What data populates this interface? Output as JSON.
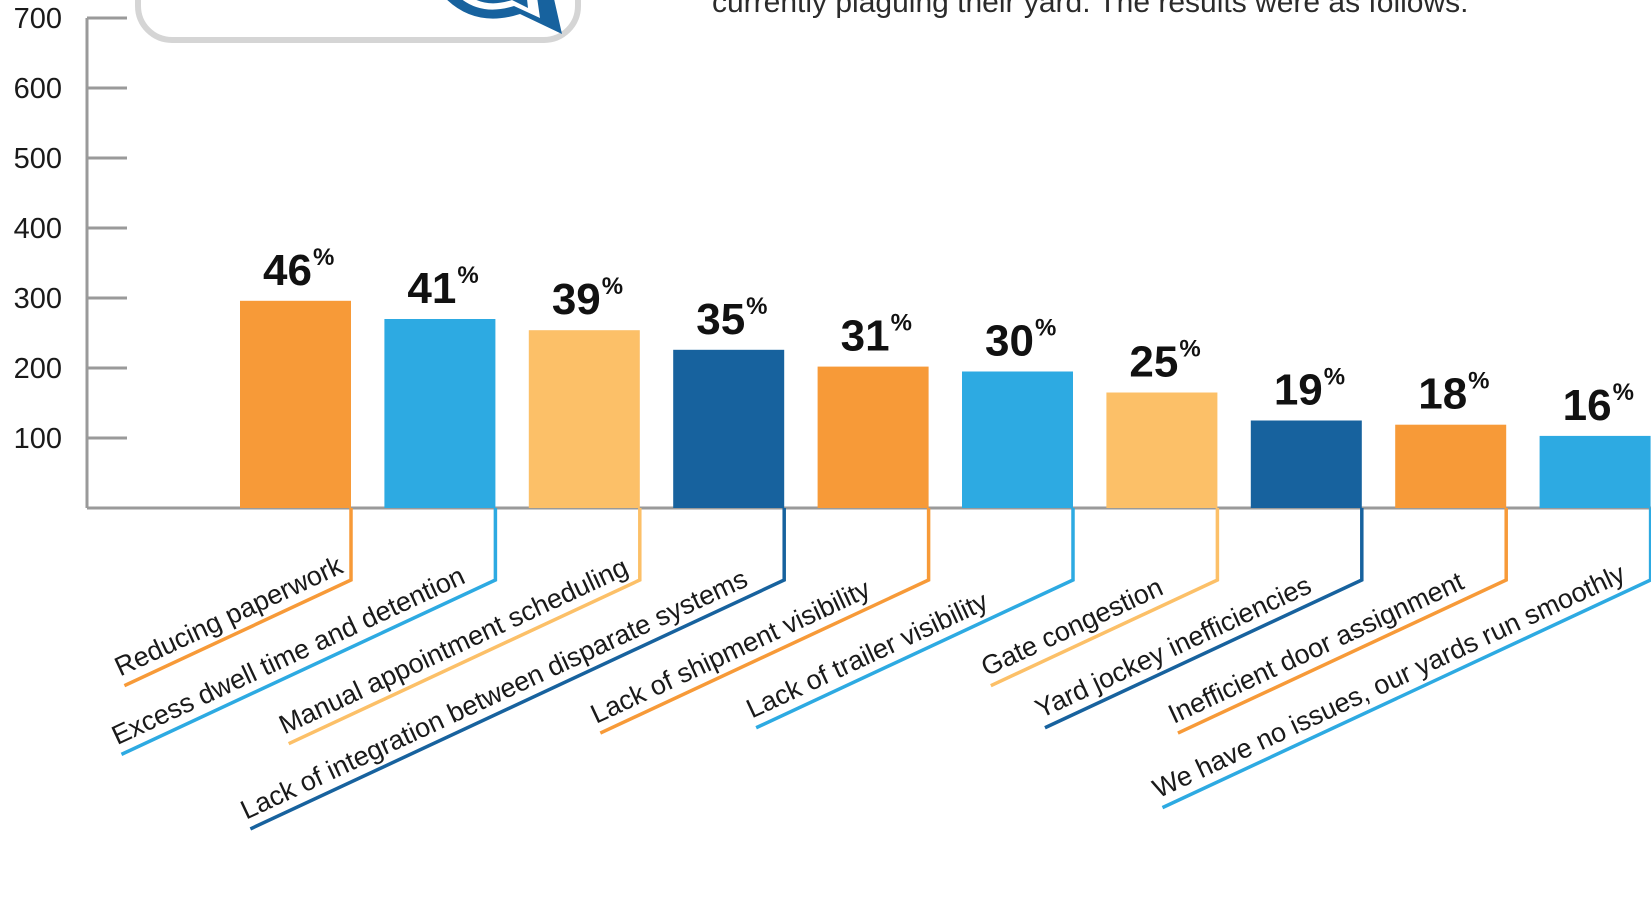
{
  "header": {
    "intro_text": "currently plaguing their yard. The results were as follows:"
  },
  "colors": {
    "orange": "#F79A38",
    "sky": "#2DAAE2",
    "light_orange": "#FCC068",
    "navy": "#17629E",
    "axis": "#9a9a9a",
    "callout_border": "#d5d5d5"
  },
  "icons": {
    "callout": "speech-bubble-icon"
  },
  "chart_data": {
    "type": "bar",
    "ylim": [
      0,
      700
    ],
    "yticks": [
      100,
      200,
      300,
      400,
      500,
      600,
      700
    ],
    "grid": false,
    "categories": [
      "Reducing paperwork",
      "Excess dwell time and detention",
      "Manual appointment scheduling",
      "Lack of integration between disparate systems",
      "Lack of shipment visibility",
      "Lack of trailer visibility",
      "Gate congestion",
      "Yard jockey inefficiencies",
      "Inefficient door assignment",
      "We have no issues, our yards run smoothly"
    ],
    "values": [
      296,
      270,
      254,
      226,
      202,
      195,
      165,
      125,
      119,
      103
    ],
    "data_labels": [
      "46",
      "41",
      "39",
      "35",
      "31",
      "30",
      "25",
      "19",
      "18",
      "16"
    ],
    "percent_symbol": "%",
    "bar_colors": [
      "#F79A38",
      "#2DAAE2",
      "#FCC068",
      "#17629E",
      "#F79A38",
      "#2DAAE2",
      "#FCC068",
      "#17629E",
      "#F79A38",
      "#2DAAE2"
    ]
  }
}
